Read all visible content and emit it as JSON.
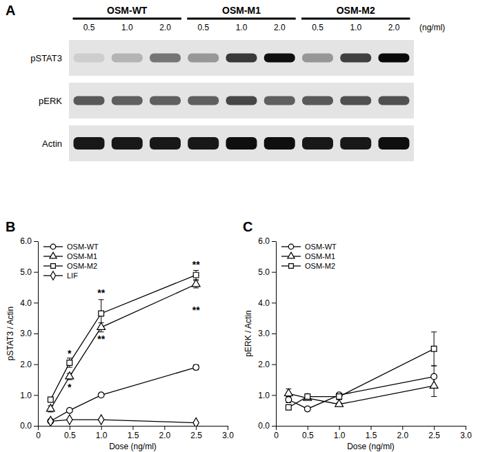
{
  "chart_data": [
    {
      "type": "blot",
      "panel_label": "A",
      "groups": [
        "OSM-WT",
        "OSM-M1",
        "OSM-M2"
      ],
      "categories": [
        "0.5",
        "1.0",
        "2.0",
        "0.5",
        "1.0",
        "2.0",
        "0.5",
        "1.0",
        "2.0"
      ],
      "unit": "(ng/ml)",
      "series": [
        {
          "name": "pSTAT3",
          "values": [
            0.3,
            0.4,
            0.62,
            0.5,
            0.82,
            0.95,
            0.5,
            0.8,
            0.97
          ]
        },
        {
          "name": "pERK",
          "values": [
            0.72,
            0.7,
            0.7,
            0.7,
            0.78,
            0.7,
            0.72,
            0.75,
            0.75
          ]
        },
        {
          "name": "Actin",
          "values": [
            0.92,
            0.92,
            0.92,
            0.92,
            0.95,
            0.95,
            0.92,
            0.92,
            0.95
          ]
        }
      ]
    },
    {
      "type": "line",
      "panel_label": "B",
      "x_label": "Dose (ng/ml)",
      "y_label": "pSTAT3 / Actin",
      "x": [
        0.2,
        0.5,
        1.0,
        2.5
      ],
      "xlim": [
        0,
        3
      ],
      "xticks": [
        0,
        0.5,
        {
          "value": 1,
          "label": "1.0"
        },
        1.5,
        {
          "value": 2,
          "label": "2.0"
        },
        2.5,
        {
          "value": 3,
          "label": "3.0"
        }
      ],
      "ylim": [
        0,
        6
      ],
      "yticks": [
        {
          "value": 0,
          "label": "0.0"
        },
        {
          "value": 1,
          "label": "1.0"
        },
        {
          "value": 2,
          "label": "2.0"
        },
        {
          "value": 3,
          "label": "3.0"
        },
        {
          "value": 4,
          "label": "4.0"
        },
        {
          "value": 5,
          "label": "5.0"
        },
        {
          "value": 6,
          "label": "6.0"
        }
      ],
      "legend": "upper left",
      "series": [
        {
          "name": "OSM-WT",
          "color": "#000000",
          "marker": "circle",
          "values": [
            0.15,
            0.5,
            1.0,
            1.9
          ],
          "errors": [
            0.05,
            0.05,
            0.05,
            0.08
          ]
        },
        {
          "name": "OSM-M1",
          "color": "#000000",
          "marker": "triangle",
          "values": [
            0.55,
            1.6,
            3.2,
            4.6
          ],
          "errors": [
            0.1,
            0.1,
            0.15,
            0.12
          ]
        },
        {
          "name": "OSM-M2",
          "color": "#000000",
          "marker": "square",
          "values": [
            0.85,
            2.05,
            3.65,
            4.9
          ],
          "errors": [
            0.05,
            0.15,
            0.45,
            0.15
          ]
        },
        {
          "name": "LIF",
          "color": "#000000",
          "marker": "diamond",
          "values": [
            0.15,
            0.2,
            0.2,
            0.1
          ],
          "errors": [
            0.03,
            0.03,
            0.03,
            0.03
          ]
        }
      ],
      "annotations": [
        {
          "text": "*",
          "x": 0.5,
          "y": 2.25
        },
        {
          "text": "*",
          "x": 0.5,
          "y": 1.15
        },
        {
          "text": "**",
          "x": 1.0,
          "y": 4.2
        },
        {
          "text": "**",
          "x": 1.0,
          "y": 2.7
        },
        {
          "text": "**",
          "x": 2.5,
          "y": 5.12
        },
        {
          "text": "**",
          "x": 2.5,
          "y": 3.65
        }
      ]
    },
    {
      "type": "line",
      "panel_label": "C",
      "x_label": "Dose (ng/ml)",
      "y_label": "pERK / Actin",
      "x": [
        0.2,
        0.5,
        1.0,
        2.5
      ],
      "xlim": [
        0,
        3
      ],
      "xticks": [
        0,
        0.5,
        {
          "value": 1,
          "label": "1.0"
        },
        1.5,
        {
          "value": 2,
          "label": "2.0"
        },
        2.5,
        {
          "value": 3,
          "label": "3.0"
        }
      ],
      "ylim": [
        0,
        6
      ],
      "yticks": [
        {
          "value": 0,
          "label": "0.0"
        },
        {
          "value": 1,
          "label": "1.0"
        },
        {
          "value": 2,
          "label": "2.0"
        },
        {
          "value": 3,
          "label": "3.0"
        },
        {
          "value": 4,
          "label": "4.0"
        },
        {
          "value": 5,
          "label": "5.0"
        },
        {
          "value": 6,
          "label": "6.0"
        }
      ],
      "legend": "upper left",
      "series": [
        {
          "name": "OSM-WT",
          "color": "#000000",
          "marker": "circle",
          "values": [
            0.85,
            0.55,
            1.0,
            1.6
          ],
          "errors": [
            0.1,
            0.05,
            0.05,
            0.35
          ]
        },
        {
          "name": "OSM-M1",
          "color": "#000000",
          "marker": "triangle",
          "values": [
            1.05,
            0.9,
            0.7,
            1.3
          ],
          "errors": [
            0.15,
            0.05,
            0.05,
            0.35
          ]
        },
        {
          "name": "OSM-M2",
          "color": "#000000",
          "marker": "square",
          "values": [
            0.6,
            0.95,
            0.95,
            2.5
          ],
          "errors": [
            0.05,
            0.05,
            0.1,
            0.55
          ]
        }
      ]
    }
  ]
}
